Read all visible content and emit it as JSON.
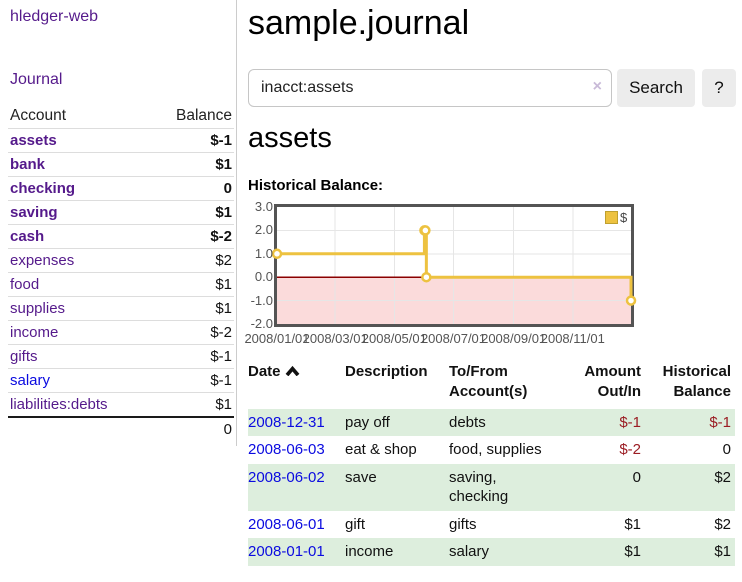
{
  "sidebar": {
    "brand": "hledger-web",
    "journal_link": "Journal",
    "accounts": {
      "headers": {
        "account": "Account",
        "balance": "Balance"
      },
      "rows": [
        {
          "name": "assets",
          "balance": "$-1"
        },
        {
          "name": "bank",
          "balance": "$1"
        },
        {
          "name": "checking",
          "balance": "0"
        },
        {
          "name": "saving",
          "balance": "$1"
        },
        {
          "name": "cash",
          "balance": "$-2"
        },
        {
          "name": "expenses",
          "balance": "$2"
        },
        {
          "name": "food",
          "balance": "$1"
        },
        {
          "name": "supplies",
          "balance": "$1"
        },
        {
          "name": "income",
          "balance": "$-2"
        },
        {
          "name": "gifts",
          "balance": "$-1"
        },
        {
          "name": "salary",
          "balance": "$-1"
        },
        {
          "name": "liabilities:debts",
          "balance": "$1"
        }
      ],
      "total": "0"
    }
  },
  "main": {
    "title": "sample.journal",
    "search": {
      "value": "inacct:assets",
      "clear_icon": "×",
      "button_label": "Search",
      "help_label": "?"
    },
    "account_heading": "assets",
    "chart_heading": "Historical Balance:"
  },
  "chart_data": {
    "type": "line",
    "title": "Historical Balance",
    "step": true,
    "series": [
      {
        "name": "$",
        "color": "#edc240",
        "points": [
          {
            "date": "2008-01-01",
            "value": 1
          },
          {
            "date": "2008-06-01",
            "value": 2
          },
          {
            "date": "2008-06-02",
            "value": 2
          },
          {
            "date": "2008-06-03",
            "value": 0
          },
          {
            "date": "2008-12-31",
            "value": -1
          }
        ]
      }
    ],
    "x_range": [
      "2008-01-01",
      "2008-12-31"
    ],
    "ylim": [
      -2,
      3
    ],
    "yticks": [
      "3.0",
      "2.0",
      "1.0",
      "0.0",
      "-1.0",
      "-2.0"
    ],
    "xticks": [
      "2008/01/01",
      "2008/03/01",
      "2008/05/01",
      "2008/07/01",
      "2008/09/01",
      "2008/11/01"
    ],
    "legend": {
      "label": "$",
      "position": "top-right"
    },
    "grid": true,
    "colors": {
      "border": "#545454",
      "gridline": "#e6e6e6",
      "zero_line": "#8b0000",
      "negative_region": "#fbdbdb",
      "marker_fill": "#ffffff"
    }
  },
  "register": {
    "headers": {
      "date": "Date",
      "sort": "ascending",
      "description": "Description",
      "account_l1": "To/From",
      "account_l2": "Account(s)",
      "amount_l1": "Amount",
      "amount_l2": "Out/In",
      "balance_l1": "Historical",
      "balance_l2": "Balance"
    },
    "rows": [
      {
        "date": "2008-12-31",
        "description": "pay off",
        "account": "debts",
        "account2": "",
        "amount": "$-1",
        "balance": "$-1",
        "amount_negative": true,
        "balance_negative": true
      },
      {
        "date": "2008-06-03",
        "description": "eat & shop",
        "account": "food, supplies",
        "account2": "",
        "amount": "$-2",
        "balance": "0",
        "amount_negative": true,
        "balance_negative": false
      },
      {
        "date": "2008-06-02",
        "description": "save",
        "account": "saving,",
        "account2": "checking",
        "amount": "0",
        "balance": "$2",
        "amount_negative": false,
        "balance_negative": false
      },
      {
        "date": "2008-06-01",
        "description": "gift",
        "account": "gifts",
        "account2": "",
        "amount": "$1",
        "balance": "$2",
        "amount_negative": false,
        "balance_negative": false
      },
      {
        "date": "2008-01-01",
        "description": "income",
        "account": "salary",
        "account2": "",
        "amount": "$1",
        "balance": "$1",
        "amount_negative": false,
        "balance_negative": false
      }
    ]
  }
}
